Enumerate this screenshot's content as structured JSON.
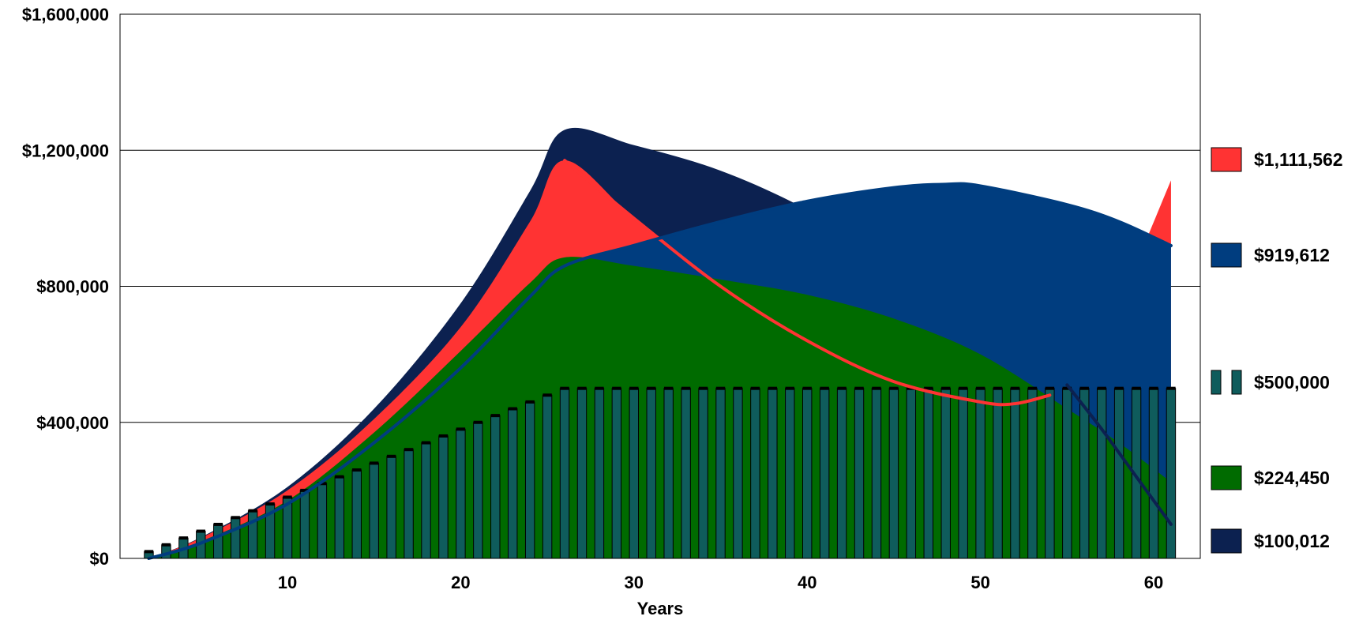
{
  "chart_data": {
    "type": "area",
    "xlabel": "Years",
    "ylabel": "",
    "xlim": [
      0,
      61
    ],
    "ylim": [
      0,
      1600000
    ],
    "x_ticks": [
      10,
      20,
      30,
      40,
      50,
      60
    ],
    "x_tick_labels": [
      "10",
      "20",
      "30",
      "40",
      "50",
      "60"
    ],
    "y_ticks": [
      0,
      400000,
      800000,
      1200000,
      1600000
    ],
    "y_tick_labels": [
      "$0",
      "$400,000",
      "$800,000",
      "$1,200,000",
      "$1,600,000"
    ],
    "grid": "horizontal",
    "legend_position": "right",
    "series": [
      {
        "name": "$100,012",
        "kind": "area",
        "color": "#0c2150",
        "points": [
          [
            2,
            0
          ],
          [
            5,
            62000
          ],
          [
            10,
            210000
          ],
          [
            15,
            440000
          ],
          [
            20,
            750000
          ],
          [
            24,
            1080000
          ],
          [
            26,
            1260000
          ],
          [
            30,
            1215000
          ],
          [
            35,
            1140000
          ],
          [
            40,
            1025000
          ],
          [
            45,
            870000
          ],
          [
            50,
            680000
          ],
          [
            55,
            430000
          ],
          [
            58,
            260000
          ],
          [
            61,
            100012
          ]
        ]
      },
      {
        "name": "$1,111,562",
        "kind": "area",
        "color": "#ff3333",
        "points": [
          [
            2,
            0
          ],
          [
            5,
            60000
          ],
          [
            10,
            200000
          ],
          [
            15,
            410000
          ],
          [
            20,
            680000
          ],
          [
            24,
            990000
          ],
          [
            26,
            1170000
          ],
          [
            30,
            1000000
          ],
          [
            35,
            800000
          ],
          [
            40,
            640000
          ],
          [
            45,
            520000
          ],
          [
            50,
            440000
          ],
          [
            53,
            420000
          ],
          [
            55,
            520000
          ],
          [
            58,
            760000
          ],
          [
            61,
            1111562
          ]
        ]
      },
      {
        "name": "$919,612",
        "kind": "area",
        "color": "#003d7f",
        "points": [
          [
            2,
            0
          ],
          [
            5,
            45000
          ],
          [
            10,
            160000
          ],
          [
            15,
            340000
          ],
          [
            20,
            560000
          ],
          [
            24,
            770000
          ],
          [
            26,
            860000
          ],
          [
            30,
            920000
          ],
          [
            35,
            990000
          ],
          [
            40,
            1050000
          ],
          [
            45,
            1090000
          ],
          [
            48,
            1100000
          ],
          [
            50,
            1095000
          ],
          [
            55,
            1040000
          ],
          [
            58,
            990000
          ],
          [
            61,
            919612
          ]
        ]
      },
      {
        "name": "$224,450",
        "kind": "area",
        "color": "#006b00",
        "points": [
          [
            2,
            0
          ],
          [
            5,
            50000
          ],
          [
            10,
            170000
          ],
          [
            15,
            370000
          ],
          [
            20,
            610000
          ],
          [
            24,
            810000
          ],
          [
            26,
            885000
          ],
          [
            30,
            860000
          ],
          [
            35,
            820000
          ],
          [
            40,
            775000
          ],
          [
            45,
            705000
          ],
          [
            50,
            600000
          ],
          [
            55,
            440000
          ],
          [
            58,
            340000
          ],
          [
            61,
            224450
          ]
        ]
      },
      {
        "name": "$500,000",
        "kind": "bar",
        "color": "#0f5c5c",
        "x_start": 2,
        "x_end": 61,
        "x_step": 1,
        "start_value": 20000,
        "increment": 20000,
        "cap": 500000
      }
    ],
    "lines": [
      {
        "name": "red-trace",
        "color": "#ff3333",
        "points": [
          [
            26,
            1170000
          ],
          [
            30,
            1000000
          ],
          [
            35,
            800000
          ],
          [
            40,
            640000
          ],
          [
            45,
            520000
          ],
          [
            50,
            460000
          ],
          [
            52,
            455000
          ],
          [
            54,
            480000
          ]
        ]
      },
      {
        "name": "blue-trace",
        "color": "#003d7f",
        "points": [
          [
            2,
            0
          ],
          [
            5,
            45000
          ],
          [
            10,
            160000
          ],
          [
            15,
            340000
          ],
          [
            20,
            560000
          ],
          [
            24,
            770000
          ],
          [
            26,
            860000
          ],
          [
            30,
            920000
          ],
          [
            35,
            990000
          ],
          [
            40,
            1050000
          ],
          [
            45,
            1090000
          ],
          [
            48,
            1100000
          ],
          [
            50,
            1095000
          ],
          [
            55,
            1040000
          ],
          [
            58,
            990000
          ],
          [
            61,
            919612
          ]
        ]
      },
      {
        "name": "navy-trace",
        "color": "#0c2150",
        "points": [
          [
            55,
            510000
          ],
          [
            57,
            380000
          ],
          [
            59,
            240000
          ],
          [
            61,
            100012
          ]
        ]
      }
    ],
    "legend_order": [
      "$1,111,562",
      "$919,612",
      "$500,000",
      "$224,450",
      "$100,012"
    ]
  }
}
